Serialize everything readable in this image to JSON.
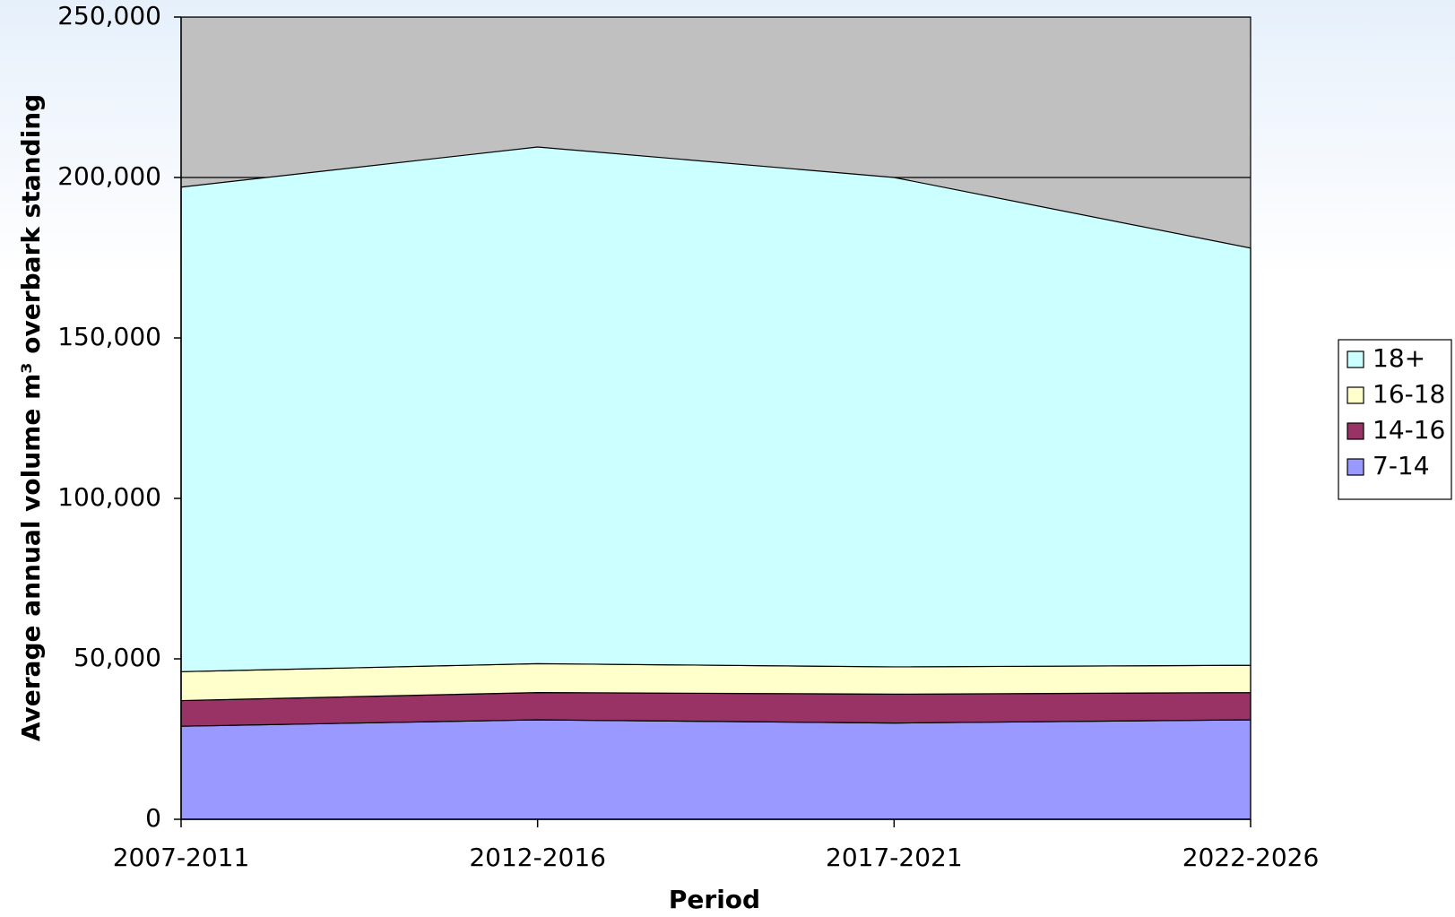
{
  "chart_data": {
    "type": "stacked_area",
    "x_label": "Period",
    "y_label": "Average annual volume m³ overbark standing",
    "categories": [
      "2007-2011",
      "2012-2016",
      "2017-2021",
      "2022-2026"
    ],
    "series": [
      {
        "name": "7-14",
        "color": "#9999ff",
        "values": [
          29000,
          31000,
          30000,
          31000
        ]
      },
      {
        "name": "14-16",
        "color": "#993366",
        "values": [
          8000,
          8500,
          9000,
          8500
        ]
      },
      {
        "name": "16-18",
        "color": "#ffffcc",
        "values": [
          9000,
          9000,
          8500,
          8500
        ]
      },
      {
        "name": "18+",
        "color": "#ccffff",
        "values": [
          151000,
          161000,
          152500,
          130000
        ]
      }
    ],
    "ylim": [
      0,
      250000
    ],
    "yticks": [
      0,
      {
        "value": 50000,
        "label": "50,000"
      },
      {
        "value": 100000,
        "label": "100,000"
      },
      {
        "value": 150000,
        "label": "150,000"
      },
      {
        "value": 200000,
        "label": "200,000"
      },
      {
        "value": 250000,
        "label": "250,000"
      }
    ],
    "grid": true,
    "plot_background": "#c0c0c0",
    "legend": "right"
  }
}
